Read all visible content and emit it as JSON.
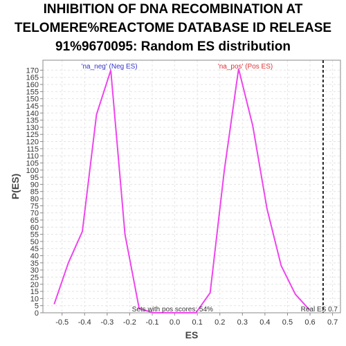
{
  "title_lines": [
    "INHIBITION OF DNA RECOMBINATION AT",
    "TELOMERE%REACTOME DATABASE ID RELEASE",
    "91%9670095: Random ES distribution"
  ],
  "chart_data": {
    "type": "line",
    "xlabel": "ES",
    "ylabel": "P(ES)",
    "xlim": [
      -0.585,
      0.735
    ],
    "ylim": [
      0,
      177
    ],
    "x_ticks": [
      -0.5,
      -0.4,
      -0.3,
      -0.2,
      -0.1,
      0.0,
      0.1,
      0.2,
      0.3,
      0.4,
      0.5,
      0.6,
      0.7
    ],
    "y_ticks": [
      0,
      5,
      10,
      15,
      20,
      25,
      30,
      35,
      40,
      45,
      50,
      55,
      60,
      65,
      70,
      75,
      80,
      85,
      90,
      95,
      100,
      105,
      110,
      115,
      120,
      125,
      130,
      135,
      140,
      145,
      150,
      155,
      160,
      165,
      170
    ],
    "grid": true,
    "line_color": "#ee44ee",
    "series": [
      {
        "values": [
          [
            -0.535,
            6
          ],
          [
            -0.472,
            35
          ],
          [
            -0.41,
            57
          ],
          [
            -0.347,
            139
          ],
          [
            -0.284,
            170
          ],
          [
            -0.221,
            55
          ],
          [
            -0.158,
            3
          ],
          [
            -0.095,
            0
          ],
          [
            0.094,
            0
          ],
          [
            0.157,
            14
          ],
          [
            0.22,
            100
          ],
          [
            0.283,
            171
          ],
          [
            0.346,
            131
          ],
          [
            0.409,
            73
          ],
          [
            0.472,
            33
          ],
          [
            0.535,
            13
          ],
          [
            0.598,
            2
          ]
        ]
      }
    ],
    "labels": {
      "neg": "'na_neg' (Neg ES)",
      "neg_color": "#3333cc",
      "pos": "'na_pos' (Pos ES)",
      "pos_color": "#dd3333",
      "sets_note": "Sets with pos scores: 54%",
      "real_es": "Real ES 0.7"
    },
    "real_es_value": 0.658
  }
}
